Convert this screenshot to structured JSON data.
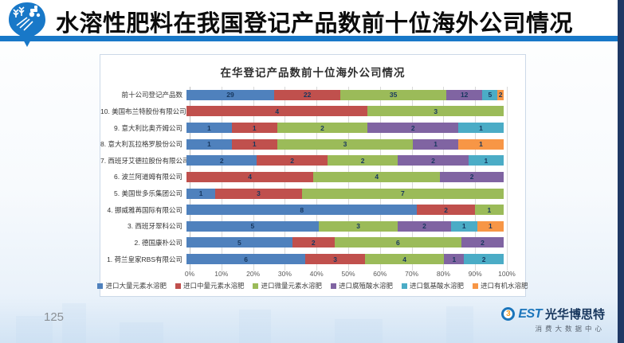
{
  "page": {
    "title": "水溶性肥料在我国登记产品数前十位海外公司情况",
    "page_number": "125",
    "accent_colors": {
      "header_line": "#1878C8",
      "side_strip": "#1F3864"
    },
    "footer_brand": {
      "circle_glyph": "3",
      "brand_text": "EST",
      "brand_name": "光华博思特",
      "brand_subtitle": "消费大数据中心"
    }
  },
  "chart_data": {
    "type": "bar",
    "variant": "horizontal-100pct-stacked",
    "title": "在华登记产品数前十位海外公司情况",
    "categories": [
      "前十公司登记产品数",
      "10. 美国布兰特股份有限公司",
      "9. 意大利比奥齐姆公司",
      "8. 意大利瓦拉格罗股份公司",
      "7. 西班牙艾德拉股份有限公司",
      "6. 波兰阿道姆有限公司",
      "5. 美国世多乐集团公司",
      "4. 挪威雅苒国际有限公司",
      "3. 西班牙翠科公司",
      "2. 德国康朴公司",
      "1. 荷兰皇家RBS有限公司"
    ],
    "series": [
      {
        "name": "进口大量元素水溶肥",
        "color": "#4F81BD",
        "values": [
          29,
          0,
          1,
          1,
          2,
          0,
          1,
          8,
          5,
          5,
          6
        ]
      },
      {
        "name": "进口中量元素水溶肥",
        "color": "#C0504D",
        "values": [
          22,
          4,
          1,
          1,
          2,
          4,
          3,
          2,
          0,
          2,
          3
        ]
      },
      {
        "name": "进口微量元素水溶肥",
        "color": "#9BBB59",
        "values": [
          35,
          3,
          2,
          3,
          2,
          4,
          7,
          1,
          3,
          6,
          4
        ]
      },
      {
        "name": "进口腐殖酸水溶肥",
        "color": "#8064A2",
        "values": [
          12,
          0,
          2,
          1,
          2,
          2,
          0,
          0,
          2,
          2,
          1
        ]
      },
      {
        "name": "进口氨基酸水溶肥",
        "color": "#4BACC6",
        "values": [
          5,
          0,
          1,
          0,
          1,
          0,
          0,
          0,
          1,
          0,
          2
        ]
      },
      {
        "name": "进口有机水溶肥",
        "color": "#F79646",
        "values": [
          2,
          0,
          0,
          1,
          0,
          0,
          0,
          0,
          1,
          0,
          0
        ]
      }
    ],
    "x_ticks": [
      "0%",
      "10%",
      "20%",
      "30%",
      "40%",
      "50%",
      "60%",
      "70%",
      "80%",
      "90%",
      "100%"
    ],
    "xlim": [
      0,
      100
    ],
    "grid": true,
    "legend_position": "bottom",
    "bar_value_labels": true
  }
}
